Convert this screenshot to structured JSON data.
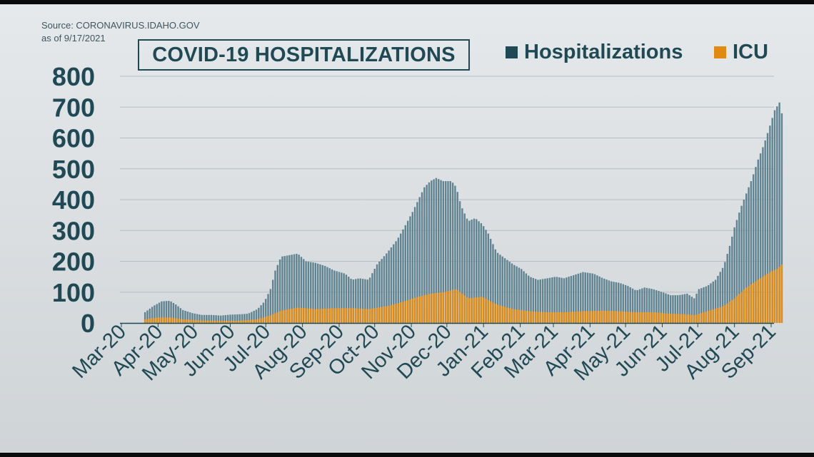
{
  "source": {
    "line1": "Source: CORONAVIRUS.IDAHO.GOV",
    "line2": "as of 9/17/2021"
  },
  "colors": {
    "hospitalizations": "#5f8390",
    "hospitalizations_legend": "#1f4a55",
    "icu": "#c8801f",
    "icu_legend": "#e08a12",
    "text": "#1f4a55",
    "grid": "#b6bec2"
  },
  "chart_data": {
    "type": "bar",
    "title": "COVID-19 HOSPITALIZATIONS",
    "xlabel": "",
    "ylabel": "",
    "ylim": [
      0,
      800
    ],
    "yticks": [
      0,
      100,
      200,
      300,
      400,
      500,
      600,
      700,
      800
    ],
    "grid": true,
    "legend_position": "top-right",
    "x_tick_labels": [
      "Mar-20",
      "Apr-20",
      "May-20",
      "Jun-20",
      "Jul-20",
      "Aug-20",
      "Sep-20",
      "Oct-20",
      "Nov-20",
      "Dec-20",
      "Jan-21",
      "Feb-21",
      "Mar-21",
      "Apr-21",
      "May-21",
      "Jun-21",
      "Jul-21",
      "Aug-21",
      "Sep-21"
    ],
    "x_tick_dates": [
      "2020-03-01",
      "2020-04-01",
      "2020-05-01",
      "2020-06-01",
      "2020-07-01",
      "2020-08-01",
      "2020-09-01",
      "2020-10-01",
      "2020-11-01",
      "2020-12-01",
      "2021-01-01",
      "2021-02-01",
      "2021-03-01",
      "2021-04-01",
      "2021-05-01",
      "2021-06-01",
      "2021-07-01",
      "2021-08-01",
      "2021-09-01"
    ],
    "bar_interval_days": 2,
    "series": [
      {
        "name": "Hospitalizations",
        "color": "#5f8390",
        "points": [
          [
            "2020-03-21",
            35
          ],
          [
            "2020-03-28",
            55
          ],
          [
            "2020-04-04",
            70
          ],
          [
            "2020-04-11",
            72
          ],
          [
            "2020-04-16",
            60
          ],
          [
            "2020-04-22",
            42
          ],
          [
            "2020-04-30",
            32
          ],
          [
            "2020-05-08",
            26
          ],
          [
            "2020-05-16",
            26
          ],
          [
            "2020-05-24",
            24
          ],
          [
            "2020-06-01",
            27
          ],
          [
            "2020-06-08",
            28
          ],
          [
            "2020-06-16",
            30
          ],
          [
            "2020-06-24",
            45
          ],
          [
            "2020-06-30",
            70
          ],
          [
            "2020-07-05",
            110
          ],
          [
            "2020-07-09",
            170
          ],
          [
            "2020-07-14",
            215
          ],
          [
            "2020-07-21",
            220
          ],
          [
            "2020-07-28",
            225
          ],
          [
            "2020-08-04",
            200
          ],
          [
            "2020-08-12",
            195
          ],
          [
            "2020-08-20",
            185
          ],
          [
            "2020-08-28",
            170
          ],
          [
            "2020-09-06",
            160
          ],
          [
            "2020-09-12",
            140
          ],
          [
            "2020-09-18",
            145
          ],
          [
            "2020-09-26",
            140
          ],
          [
            "2020-10-03",
            190
          ],
          [
            "2020-10-12",
            230
          ],
          [
            "2020-10-20",
            270
          ],
          [
            "2020-10-26",
            310
          ],
          [
            "2020-11-02",
            360
          ],
          [
            "2020-11-07",
            400
          ],
          [
            "2020-11-12",
            440
          ],
          [
            "2020-11-17",
            460
          ],
          [
            "2020-11-22",
            470
          ],
          [
            "2020-11-28",
            460
          ],
          [
            "2020-12-05",
            460
          ],
          [
            "2020-12-09",
            440
          ],
          [
            "2020-12-13",
            380
          ],
          [
            "2020-12-19",
            330
          ],
          [
            "2020-12-25",
            340
          ],
          [
            "2020-12-31",
            320
          ],
          [
            "2021-01-05",
            290
          ],
          [
            "2021-01-12",
            230
          ],
          [
            "2021-01-19",
            210
          ],
          [
            "2021-01-26",
            190
          ],
          [
            "2021-02-02",
            175
          ],
          [
            "2021-02-09",
            150
          ],
          [
            "2021-02-16",
            140
          ],
          [
            "2021-02-24",
            145
          ],
          [
            "2021-03-03",
            150
          ],
          [
            "2021-03-10",
            145
          ],
          [
            "2021-03-18",
            155
          ],
          [
            "2021-03-26",
            165
          ],
          [
            "2021-04-04",
            160
          ],
          [
            "2021-04-12",
            145
          ],
          [
            "2021-04-19",
            135
          ],
          [
            "2021-04-26",
            130
          ],
          [
            "2021-05-03",
            120
          ],
          [
            "2021-05-10",
            105
          ],
          [
            "2021-05-17",
            115
          ],
          [
            "2021-05-24",
            110
          ],
          [
            "2021-06-01",
            100
          ],
          [
            "2021-06-08",
            90
          ],
          [
            "2021-06-15",
            90
          ],
          [
            "2021-06-22",
            95
          ],
          [
            "2021-06-28",
            80
          ],
          [
            "2021-07-02",
            110
          ],
          [
            "2021-07-09",
            120
          ],
          [
            "2021-07-16",
            140
          ],
          [
            "2021-07-23",
            185
          ],
          [
            "2021-07-28",
            250
          ],
          [
            "2021-08-01",
            310
          ],
          [
            "2021-08-06",
            370
          ],
          [
            "2021-08-11",
            420
          ],
          [
            "2021-08-16",
            470
          ],
          [
            "2021-08-21",
            530
          ],
          [
            "2021-08-26",
            580
          ],
          [
            "2021-08-31",
            640
          ],
          [
            "2021-09-04",
            690
          ],
          [
            "2021-09-08",
            715
          ],
          [
            "2021-09-10",
            680
          ]
        ]
      },
      {
        "name": "ICU",
        "color": "#e08a12",
        "points": [
          [
            "2020-03-21",
            12
          ],
          [
            "2020-04-01",
            18
          ],
          [
            "2020-04-11",
            18
          ],
          [
            "2020-04-22",
            12
          ],
          [
            "2020-05-08",
            8
          ],
          [
            "2020-05-24",
            7
          ],
          [
            "2020-06-08",
            7
          ],
          [
            "2020-06-24",
            12
          ],
          [
            "2020-07-05",
            25
          ],
          [
            "2020-07-14",
            40
          ],
          [
            "2020-07-28",
            50
          ],
          [
            "2020-08-12",
            45
          ],
          [
            "2020-08-28",
            48
          ],
          [
            "2020-09-12",
            48
          ],
          [
            "2020-09-26",
            45
          ],
          [
            "2020-10-12",
            55
          ],
          [
            "2020-10-26",
            70
          ],
          [
            "2020-11-07",
            85
          ],
          [
            "2020-11-17",
            95
          ],
          [
            "2020-11-28",
            100
          ],
          [
            "2020-12-09",
            110
          ],
          [
            "2020-12-19",
            80
          ],
          [
            "2020-12-31",
            85
          ],
          [
            "2021-01-12",
            60
          ],
          [
            "2021-01-26",
            45
          ],
          [
            "2021-02-09",
            38
          ],
          [
            "2021-02-24",
            35
          ],
          [
            "2021-03-10",
            35
          ],
          [
            "2021-03-26",
            38
          ],
          [
            "2021-04-12",
            40
          ],
          [
            "2021-04-26",
            38
          ],
          [
            "2021-05-10",
            35
          ],
          [
            "2021-05-24",
            35
          ],
          [
            "2021-06-08",
            30
          ],
          [
            "2021-06-22",
            28
          ],
          [
            "2021-06-28",
            25
          ],
          [
            "2021-07-09",
            38
          ],
          [
            "2021-07-23",
            55
          ],
          [
            "2021-08-01",
            80
          ],
          [
            "2021-08-11",
            115
          ],
          [
            "2021-08-21",
            140
          ],
          [
            "2021-08-31",
            165
          ],
          [
            "2021-09-06",
            175
          ],
          [
            "2021-09-10",
            190
          ]
        ]
      }
    ]
  }
}
